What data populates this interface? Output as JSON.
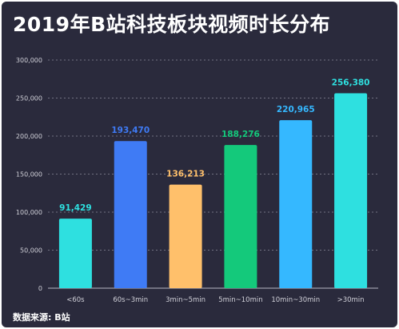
{
  "title": "2019年B站科技板块视频时长分布",
  "source": "数据来源: B站",
  "colors": {
    "background": "#2a2a3c",
    "axis_text": "#d0d0d8",
    "grid": "#8a8a99"
  },
  "chart_data": {
    "type": "bar",
    "categories": [
      "<60s",
      "60s~3min",
      "3min~5min",
      "5min~10min",
      "10min~30min",
      ">30min"
    ],
    "values": [
      91429,
      193470,
      136213,
      188276,
      220965,
      256380
    ],
    "value_labels": [
      "91,429",
      "193,470",
      "136,213",
      "188,276",
      "220,965",
      "256,380"
    ],
    "bar_colors": [
      "#2ee0e0",
      "#3f7bf5",
      "#ffc06b",
      "#14c97b",
      "#35b8ff",
      "#2ee0e0"
    ],
    "yticks": [
      {
        "value": 0,
        "label": "0"
      },
      {
        "value": 50000,
        "label": "50,000"
      },
      {
        "value": 100000,
        "label": "100,000"
      },
      {
        "value": 150000,
        "label": "150,000"
      },
      {
        "value": 200000,
        "label": "200,000"
      },
      {
        "value": 250000,
        "label": "250,000"
      },
      {
        "value": 300000,
        "label": "300,000"
      }
    ],
    "ylim": [
      0,
      300000
    ],
    "grid": true,
    "grid_style": "dotted",
    "xlabel": "",
    "ylabel": ""
  }
}
